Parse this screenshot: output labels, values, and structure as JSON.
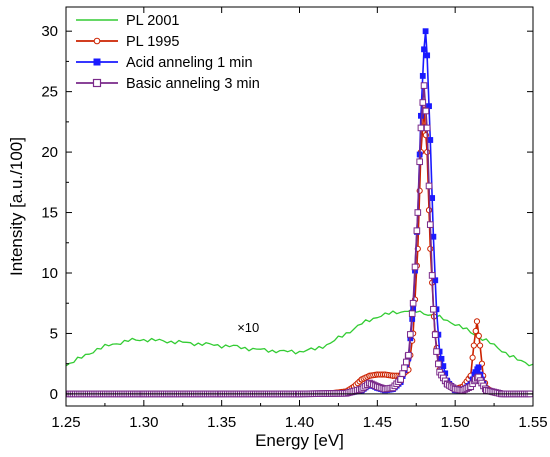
{
  "chart_data": {
    "type": "line",
    "xlabel": "Energy [eV]",
    "ylabel": "Intensity [a.u./100]",
    "xlim": [
      1.25,
      1.55
    ],
    "ylim": [
      -1,
      32
    ],
    "x_ticks": [
      "1.25",
      "1.30",
      "1.35",
      "1.40",
      "1.45",
      "1.50",
      "1.55"
    ],
    "y_ticks": [
      "0",
      "5",
      "10",
      "15",
      "20",
      "25",
      "30"
    ],
    "legend_position": "top-left",
    "grid": false,
    "annotations": [
      {
        "text": "×10",
        "x": 1.36,
        "y": 5.1
      }
    ],
    "series": [
      {
        "name": "PL 2001",
        "color": "#33cc33",
        "marker": "none",
        "x": [
          1.25,
          1.26,
          1.27,
          1.28,
          1.29,
          1.3,
          1.31,
          1.32,
          1.33,
          1.34,
          1.35,
          1.36,
          1.37,
          1.38,
          1.39,
          1.4,
          1.41,
          1.42,
          1.43,
          1.44,
          1.45,
          1.46,
          1.47,
          1.48,
          1.49,
          1.5,
          1.51,
          1.52,
          1.53,
          1.54,
          1.55
        ],
        "y": [
          2.4,
          3.0,
          3.7,
          4.1,
          4.4,
          4.5,
          4.4,
          4.3,
          4.2,
          4.1,
          4.0,
          3.9,
          3.7,
          3.6,
          3.5,
          3.5,
          3.7,
          4.2,
          5.0,
          5.8,
          6.4,
          6.7,
          6.9,
          6.7,
          6.3,
          5.8,
          5.1,
          4.4,
          3.6,
          2.8,
          2.4
        ]
      },
      {
        "name": "PL 1995",
        "color": "#cc2200",
        "marker": "open-circle",
        "x": [
          1.25,
          1.3,
          1.35,
          1.4,
          1.42,
          1.43,
          1.435,
          1.44,
          1.445,
          1.45,
          1.455,
          1.46,
          1.465,
          1.47,
          1.473,
          1.476,
          1.478,
          1.48,
          1.482,
          1.484,
          1.487,
          1.49,
          1.495,
          1.5,
          1.505,
          1.51,
          1.512,
          1.514,
          1.516,
          1.518,
          1.52,
          1.525,
          1.53,
          1.55
        ],
        "y": [
          0.0,
          0.0,
          0.0,
          0.0,
          0.05,
          0.2,
          0.6,
          1.2,
          1.5,
          1.6,
          1.6,
          1.5,
          1.5,
          2.0,
          5.0,
          12.0,
          20.0,
          23.5,
          20.0,
          12.0,
          5.0,
          2.0,
          0.8,
          0.4,
          0.6,
          1.5,
          4.0,
          6.0,
          4.0,
          1.5,
          0.5,
          0.1,
          0.0,
          0.0
        ]
      },
      {
        "name": "Acid anneling 1 min",
        "color": "#1a1aff",
        "marker": "filled-square",
        "x": [
          1.25,
          1.3,
          1.35,
          1.4,
          1.43,
          1.44,
          1.445,
          1.45,
          1.455,
          1.46,
          1.465,
          1.47,
          1.473,
          1.476,
          1.478,
          1.48,
          1.481,
          1.482,
          1.484,
          1.486,
          1.488,
          1.49,
          1.495,
          1.5,
          1.505,
          1.51,
          1.513,
          1.515,
          1.517,
          1.52,
          1.53,
          1.55
        ],
        "y": [
          0.0,
          0.0,
          0.0,
          0.0,
          0.05,
          0.3,
          0.8,
          0.5,
          0.3,
          0.4,
          1.0,
          3.0,
          7.0,
          15.0,
          23.0,
          28.5,
          30.0,
          28.0,
          21.0,
          13.0,
          7.0,
          3.5,
          1.0,
          0.3,
          0.3,
          0.8,
          1.8,
          2.2,
          1.2,
          0.3,
          0.0,
          0.0
        ]
      },
      {
        "name": "Basic anneling 3 min",
        "color": "#7a2a8a",
        "marker": "open-square",
        "x": [
          1.25,
          1.3,
          1.35,
          1.4,
          1.43,
          1.44,
          1.445,
          1.45,
          1.455,
          1.46,
          1.465,
          1.47,
          1.473,
          1.476,
          1.478,
          1.48,
          1.482,
          1.484,
          1.486,
          1.488,
          1.49,
          1.495,
          1.5,
          1.505,
          1.51,
          1.513,
          1.515,
          1.517,
          1.52,
          1.53,
          1.55
        ],
        "y": [
          0.0,
          0.0,
          0.0,
          0.0,
          0.05,
          0.4,
          0.9,
          0.6,
          0.4,
          0.5,
          1.2,
          3.2,
          7.5,
          15.0,
          22.0,
          25.5,
          22.0,
          14.0,
          7.0,
          3.5,
          1.8,
          0.8,
          0.4,
          0.3,
          0.6,
          1.2,
          1.4,
          0.9,
          0.3,
          0.0,
          0.0
        ]
      }
    ]
  }
}
